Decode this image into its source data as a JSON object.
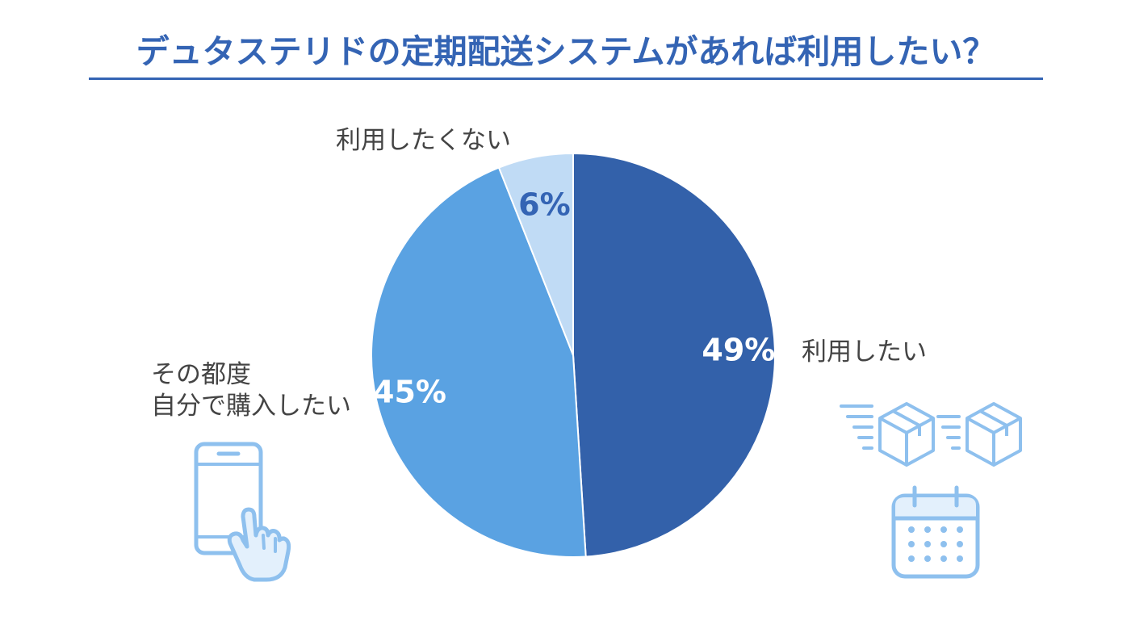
{
  "title": "デュタステリドの定期配送システムがあれば利用したい？",
  "colors": {
    "title": "#3464b4",
    "slice_want": "#3361aa",
    "slice_self": "#5aa2e2",
    "slice_not": "#c0dbf5",
    "icon": "#8ec0ee",
    "icon_fill": "#e3f0fc"
  },
  "labels": {
    "want": "利用したい",
    "self_line1": "その都度",
    "self_line2": "自分で購入したい",
    "not": "利用したくない"
  },
  "icons": [
    "smartphone-tap-icon",
    "delivery-boxes-icon",
    "calendar-icon"
  ],
  "chart_data": {
    "type": "pie",
    "title": "デュタステリドの定期配送システムがあれば利用したい？",
    "start_angle": "12 o'clock",
    "direction": "clockwise",
    "slices": [
      {
        "label": "利用したい",
        "value": 49,
        "value_label": "49%",
        "color": "#3361aa"
      },
      {
        "label": "その都度自分で購入したい",
        "value": 45,
        "value_label": "45%",
        "color": "#5aa2e2"
      },
      {
        "label": "利用したくない",
        "value": 6,
        "value_label": "6%",
        "color": "#c0dbf5"
      }
    ]
  }
}
